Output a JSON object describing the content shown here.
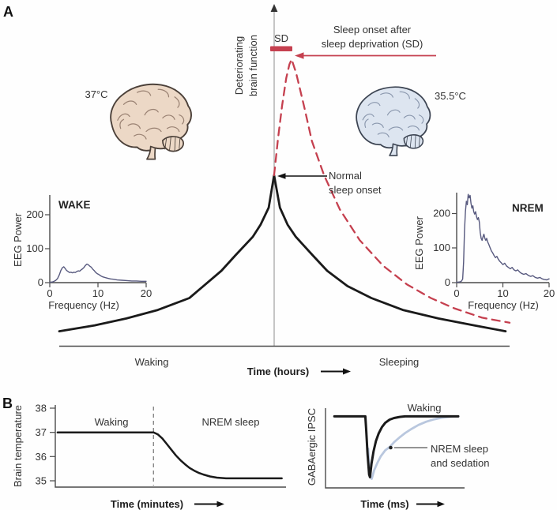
{
  "panels": {
    "a": "A",
    "b": "B"
  },
  "colors": {
    "red": "#c5404f",
    "black": "#1a1a1a",
    "eeg_trace": "#585a7f",
    "nrem_sedation_blue": "#b9c7de"
  },
  "chart_data": [
    {
      "id": "brain-function-timecourse",
      "type": "line",
      "xlabel": "Time (hours)",
      "ylabel": "Deteriorating brain function",
      "ylabel_lines": [
        "Deteriorating",
        "brain function"
      ],
      "x_regions": [
        "Waking",
        "Sleeping"
      ],
      "annotations": {
        "sd_bar": "SD",
        "sd_onset_lines": [
          "Sleep onset after",
          "sleep deprivation (SD)"
        ],
        "normal_onset_lines": [
          "Normal",
          "sleep onset"
        ]
      },
      "brains": [
        {
          "state": "waking",
          "temperature": "37°C",
          "fill": "#ecd8c6"
        },
        {
          "state": "nrem",
          "temperature": "35.5°C",
          "fill": "#dde5f0"
        }
      ],
      "xlim": [
        0,
        1
      ],
      "ylim": [
        0,
        100
      ],
      "series": [
        {
          "name": "normal sleep",
          "color": "#1a1a1a",
          "line_style": "solid",
          "points": [
            [
              0,
              8.5
            ],
            [
              0.079,
              12
            ],
            [
              0.149,
              16
            ],
            [
              0.219,
              21
            ],
            [
              0.289,
              28
            ],
            [
              0.36,
              44
            ],
            [
              0.391,
              53
            ],
            [
              0.43,
              64
            ],
            [
              0.447,
              71
            ],
            [
              0.465,
              81
            ],
            [
              0.477,
              100
            ],
            [
              0.49,
              81
            ],
            [
              0.507,
              71
            ],
            [
              0.525,
              64
            ],
            [
              0.563,
              53
            ],
            [
              0.595,
              44
            ],
            [
              0.64,
              35
            ],
            [
              0.693,
              28
            ],
            [
              0.763,
              21
            ],
            [
              0.842,
              16
            ],
            [
              0.921,
              12
            ],
            [
              0.991,
              8.5
            ]
          ]
        },
        {
          "name": "sleep deprivation (SD)",
          "color": "#c5404f",
          "line_style": "dashed",
          "points": [
            [
              0.477,
              100
            ],
            [
              0.486,
              122
            ],
            [
              0.495,
              141
            ],
            [
              0.504,
              157
            ],
            [
              0.511,
              165
            ],
            [
              0.516,
              168
            ],
            [
              0.526,
              160
            ],
            [
              0.544,
              140
            ],
            [
              0.561,
              120
            ],
            [
              0.588,
              100
            ],
            [
              0.623,
              80
            ],
            [
              0.667,
              62
            ],
            [
              0.719,
              47
            ],
            [
              0.772,
              36
            ],
            [
              0.825,
              28
            ],
            [
              0.877,
              22
            ],
            [
              0.939,
              16.5
            ],
            [
              1.0,
              13.5
            ]
          ]
        }
      ]
    },
    {
      "id": "wake-eeg-spectrum",
      "type": "line",
      "title": "WAKE",
      "xlabel": "Frequency (Hz)",
      "ylabel": "EEG Power",
      "xlim": [
        0,
        20
      ],
      "ylim": [
        0,
        260
      ],
      "xticks": [
        0,
        10,
        20
      ],
      "yticks": [
        0,
        100,
        200
      ],
      "color": "#585a7f",
      "points": [
        [
          0,
          1
        ],
        [
          0.6,
          2
        ],
        [
          1.2,
          6
        ],
        [
          1.6,
          12
        ],
        [
          2,
          24
        ],
        [
          2.3,
          36
        ],
        [
          2.6,
          44
        ],
        [
          2.9,
          47
        ],
        [
          3.2,
          42
        ],
        [
          3.5,
          36
        ],
        [
          3.8,
          33
        ],
        [
          4.1,
          30
        ],
        [
          4.4,
          31
        ],
        [
          4.7,
          29
        ],
        [
          5,
          31
        ],
        [
          5.3,
          30
        ],
        [
          5.6,
          33
        ],
        [
          5.9,
          35
        ],
        [
          6.2,
          34
        ],
        [
          6.5,
          38
        ],
        [
          6.8,
          41
        ],
        [
          7.1,
          45
        ],
        [
          7.4,
          51
        ],
        [
          7.7,
          55
        ],
        [
          8,
          53
        ],
        [
          8.3,
          49
        ],
        [
          8.6,
          46
        ],
        [
          8.9,
          40
        ],
        [
          9.2,
          36
        ],
        [
          9.5,
          31
        ],
        [
          9.8,
          27
        ],
        [
          10.2,
          24
        ],
        [
          10.6,
          20
        ],
        [
          11,
          17
        ],
        [
          11.5,
          15
        ],
        [
          12,
          13
        ],
        [
          12.6,
          11
        ],
        [
          13.2,
          10
        ],
        [
          14,
          8
        ],
        [
          15,
          7
        ],
        [
          16,
          6
        ],
        [
          17,
          5
        ],
        [
          18,
          5
        ],
        [
          19,
          4
        ],
        [
          20,
          4
        ]
      ]
    },
    {
      "id": "nrem-eeg-spectrum",
      "type": "line",
      "title": "NREM",
      "xlabel": "Frequency (Hz)",
      "ylabel": "EEG Power",
      "xlim": [
        0,
        20
      ],
      "ylim": [
        0,
        260
      ],
      "xticks": [
        0,
        10,
        20
      ],
      "yticks": [
        0,
        100,
        200
      ],
      "color": "#585a7f",
      "points": [
        [
          0,
          1
        ],
        [
          0.7,
          2
        ],
        [
          1,
          4
        ],
        [
          1.3,
          10
        ],
        [
          1.5,
          60
        ],
        [
          1.7,
          150
        ],
        [
          1.9,
          205
        ],
        [
          2.1,
          235
        ],
        [
          2.3,
          225
        ],
        [
          2.5,
          255
        ],
        [
          2.7,
          245
        ],
        [
          2.9,
          252
        ],
        [
          3.1,
          230
        ],
        [
          3.3,
          215
        ],
        [
          3.5,
          222
        ],
        [
          3.7,
          205
        ],
        [
          3.9,
          198
        ],
        [
          4.1,
          205
        ],
        [
          4.3,
          190
        ],
        [
          4.5,
          182
        ],
        [
          4.7,
          188
        ],
        [
          4.9,
          175
        ],
        [
          5.1,
          145
        ],
        [
          5.3,
          128
        ],
        [
          5.5,
          122
        ],
        [
          5.7,
          132
        ],
        [
          5.9,
          140
        ],
        [
          6.1,
          128
        ],
        [
          6.3,
          122
        ],
        [
          6.5,
          128
        ],
        [
          6.7,
          118
        ],
        [
          6.9,
          112
        ],
        [
          7.2,
          102
        ],
        [
          7.5,
          92
        ],
        [
          7.8,
          86
        ],
        [
          8.1,
          78
        ],
        [
          8.4,
          72
        ],
        [
          8.7,
          76
        ],
        [
          9,
          68
        ],
        [
          9.3,
          62
        ],
        [
          9.6,
          58
        ],
        [
          10,
          52
        ],
        [
          10.4,
          56
        ],
        [
          10.8,
          48
        ],
        [
          11.2,
          44
        ],
        [
          11.6,
          40
        ],
        [
          12,
          44
        ],
        [
          12.4,
          37
        ],
        [
          12.8,
          34
        ],
        [
          13.2,
          37
        ],
        [
          13.6,
          31
        ],
        [
          14,
          27
        ],
        [
          14.5,
          24
        ],
        [
          15,
          26
        ],
        [
          15.5,
          21
        ],
        [
          16,
          18
        ],
        [
          16.5,
          20
        ],
        [
          17,
          15
        ],
        [
          17.5,
          13
        ],
        [
          18,
          15
        ],
        [
          18.5,
          11
        ],
        [
          19,
          9
        ],
        [
          19.5,
          8
        ],
        [
          20,
          11
        ]
      ]
    },
    {
      "id": "brain-temperature",
      "type": "line",
      "xlabel": "Time (minutes)",
      "ylabel": "Brain temperature",
      "xlim": [
        0,
        100
      ],
      "ylim": [
        35,
        38
      ],
      "yticks": [
        35,
        36,
        37,
        38
      ],
      "regions": [
        "Waking",
        "NREM sleep"
      ],
      "transition_minute": 43.2,
      "color": "#1a1a1a",
      "points": [
        [
          1,
          37
        ],
        [
          43.2,
          37
        ],
        [
          45,
          36.92
        ],
        [
          47,
          36.75
        ],
        [
          49,
          36.52
        ],
        [
          51,
          36.28
        ],
        [
          53,
          36.05
        ],
        [
          55,
          35.85
        ],
        [
          57,
          35.68
        ],
        [
          59,
          35.53
        ],
        [
          61,
          35.42
        ],
        [
          63,
          35.33
        ],
        [
          65,
          35.26
        ],
        [
          68,
          35.18
        ],
        [
          71,
          35.13
        ],
        [
          75,
          35.1
        ],
        [
          80,
          35.1
        ],
        [
          99.5,
          35.1
        ]
      ]
    },
    {
      "id": "gabaergic-ipsc",
      "type": "line",
      "xlabel": "Time (ms)",
      "ylabel": "GABAergic IPSC",
      "xlim": [
        0,
        60
      ],
      "ylim": [
        -132,
        5
      ],
      "series": [
        {
          "name": "Waking",
          "color": "#1a1a1a",
          "points": [
            [
              4,
              0
            ],
            [
              18,
              0
            ],
            [
              18.4,
              -25
            ],
            [
              19,
              -70
            ],
            [
              19.7,
              -108
            ],
            [
              20.1,
              -113
            ],
            [
              20.8,
              -88
            ],
            [
              21.7,
              -65
            ],
            [
              22.8,
              -46
            ],
            [
              24,
              -32
            ],
            [
              25.5,
              -20
            ],
            [
              27,
              -12
            ],
            [
              29,
              -6
            ],
            [
              31,
              -3
            ],
            [
              33.5,
              -1
            ],
            [
              36,
              0
            ],
            [
              60,
              0
            ]
          ]
        },
        {
          "name": "NREM sleep and sedation",
          "label_lines": [
            "NREM sleep",
            "and sedation"
          ],
          "color": "#b9c7de",
          "points": [
            [
              19.3,
              -60
            ],
            [
              19.8,
              -95
            ],
            [
              20.3,
              -112
            ],
            [
              20.9,
              -116
            ],
            [
              22,
              -100
            ],
            [
              23.5,
              -86
            ],
            [
              25,
              -74
            ],
            [
              27,
              -63
            ],
            [
              29,
              -57
            ],
            [
              31,
              -48
            ],
            [
              33.5,
              -39
            ],
            [
              36,
              -31
            ],
            [
              39,
              -23
            ],
            [
              42,
              -16
            ],
            [
              45.5,
              -10
            ],
            [
              49,
              -5.5
            ],
            [
              52.5,
              -2.5
            ],
            [
              56,
              -0.8
            ],
            [
              58,
              0
            ],
            [
              60,
              0
            ]
          ]
        }
      ]
    }
  ]
}
